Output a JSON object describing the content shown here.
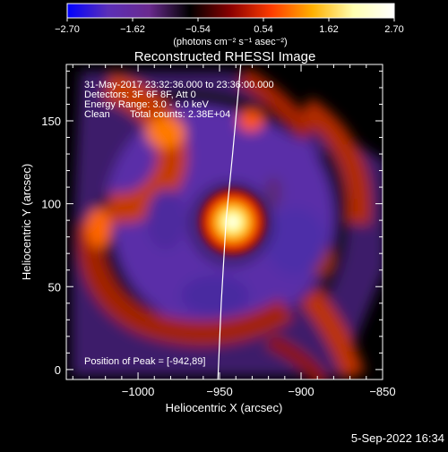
{
  "colorbar": {
    "ticks": [
      "-2.70",
      "-1.62",
      "-0.54",
      "0.54",
      "1.62",
      "2.70"
    ],
    "units": "(photons cm⁻² s⁻¹ asec⁻²)",
    "stops": [
      "#0000ff",
      "#5b2fb7",
      "#6a2a8f",
      "#000000",
      "#8a0000",
      "#ff3c00",
      "#ffb000",
      "#ffffb0",
      "#ffffff"
    ]
  },
  "chart_data": {
    "type": "heatmap",
    "title": "Reconstructed RHESSI Image",
    "xlabel": "Heliocentric X (arcsec)",
    "ylabel": "Heliocentric Y (arcsec)",
    "xlim": [
      -1044,
      -850
    ],
    "ylim": [
      -6,
      184
    ],
    "xticks": [
      -1000,
      -950,
      -900,
      -850
    ],
    "yticks": [
      0,
      50,
      100,
      150
    ],
    "xtick_labels": [
      "−1000",
      "−950",
      "−900",
      "−850"
    ],
    "ytick_labels": [
      "0",
      "50",
      "100",
      "150"
    ],
    "colorbar_range": [
      -2.7,
      2.7
    ],
    "peak": {
      "x": -942,
      "y": 89
    },
    "limb_curve": [
      [
        -951,
        -6
      ],
      [
        -949,
        40
      ],
      [
        -946,
        90
      ],
      [
        -942,
        130
      ],
      [
        -937,
        184
      ]
    ],
    "annotations": [
      "31-May-2017 23:32:36.000 to 23:36:00.000",
      "Detectors: 3F 6F 8F, Att 0",
      "Energy Range: 3.0 - 6.0 keV",
      "Clean",
      "Total counts: 2.38E+04",
      "Position of Peak = [-942,89]"
    ]
  },
  "footer": {
    "date": "5-Sep-2022 16:34"
  }
}
